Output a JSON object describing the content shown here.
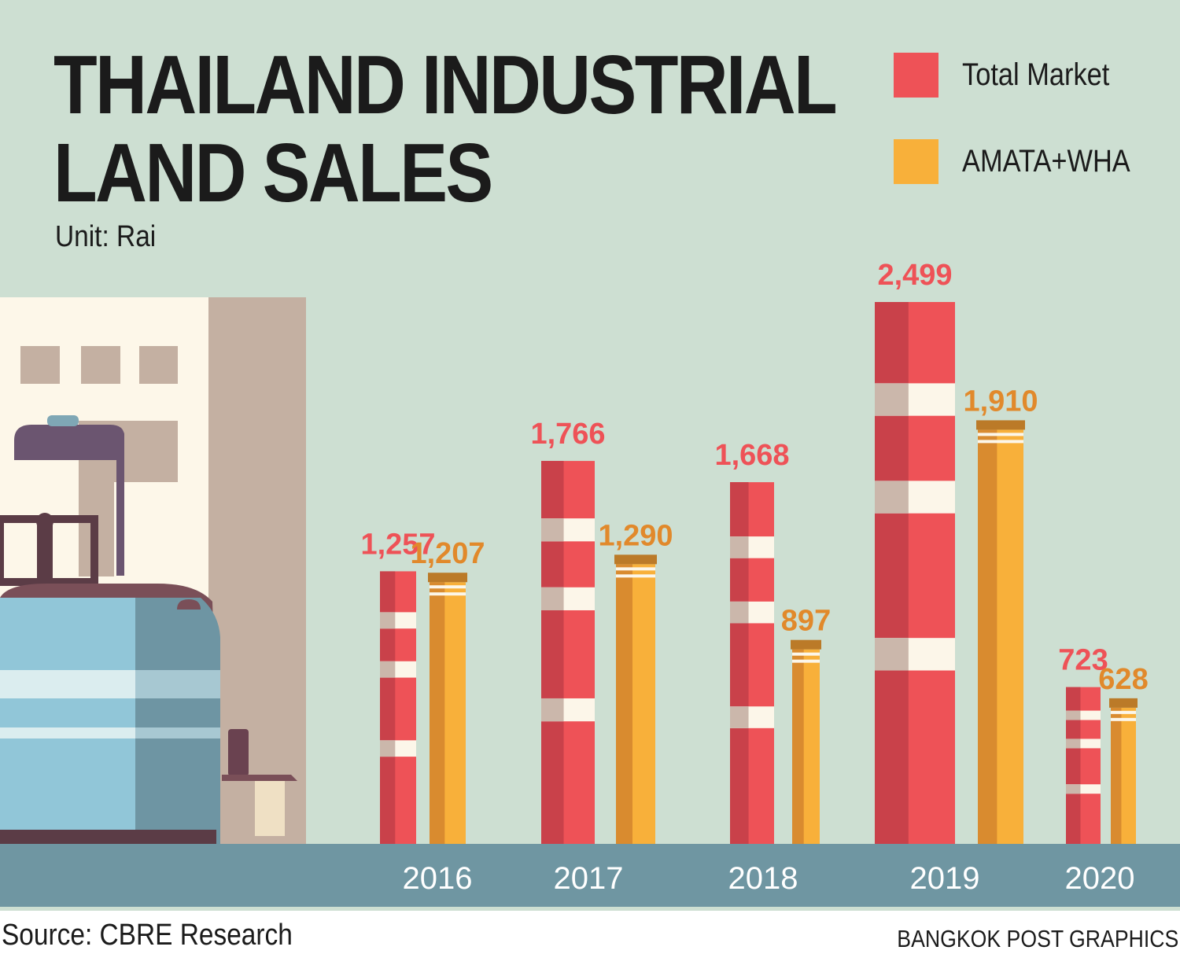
{
  "colors": {
    "background": "#cddfd2",
    "total": "#ee5257",
    "total_dark": "#c9414a",
    "amata": "#f8b03a",
    "amata_dark": "#d98b2f",
    "amata_cap": "#bb7a28",
    "stripe": "#fcf6e9",
    "stripe_dark": "#cbb7ab",
    "ground": "#6f96a2",
    "year_text": "#ffffff",
    "total_label": "#ee5257",
    "amata_label": "#e1892b"
  },
  "chart_data": {
    "type": "bar",
    "title": "THAILAND INDUSTRIAL LAND SALES",
    "title_lines": [
      "THAILAND INDUSTRIAL",
      "LAND SALES"
    ],
    "subtitle": "Unit: Rai",
    "xlabel": "",
    "ylabel": "",
    "categories": [
      "2016",
      "2017",
      "2018",
      "2019",
      "2020"
    ],
    "series": [
      {
        "name": "Total Market",
        "values": [
          1257,
          1766,
          1668,
          2499,
          723
        ],
        "labels": [
          "1,257",
          "1,766",
          "1,668",
          "2,499",
          "723"
        ]
      },
      {
        "name": "AMATA+WHA",
        "values": [
          1207,
          1290,
          897,
          1910,
          628
        ],
        "labels": [
          "1,207",
          "1,290",
          "897",
          "1,910",
          "628"
        ]
      }
    ],
    "ylim": [
      0,
      2499
    ],
    "grid": false,
    "legend_position": "top-right"
  },
  "footer": {
    "source": "Source: CBRE Research",
    "credit": "BANGKOK POST GRAPHICS"
  }
}
